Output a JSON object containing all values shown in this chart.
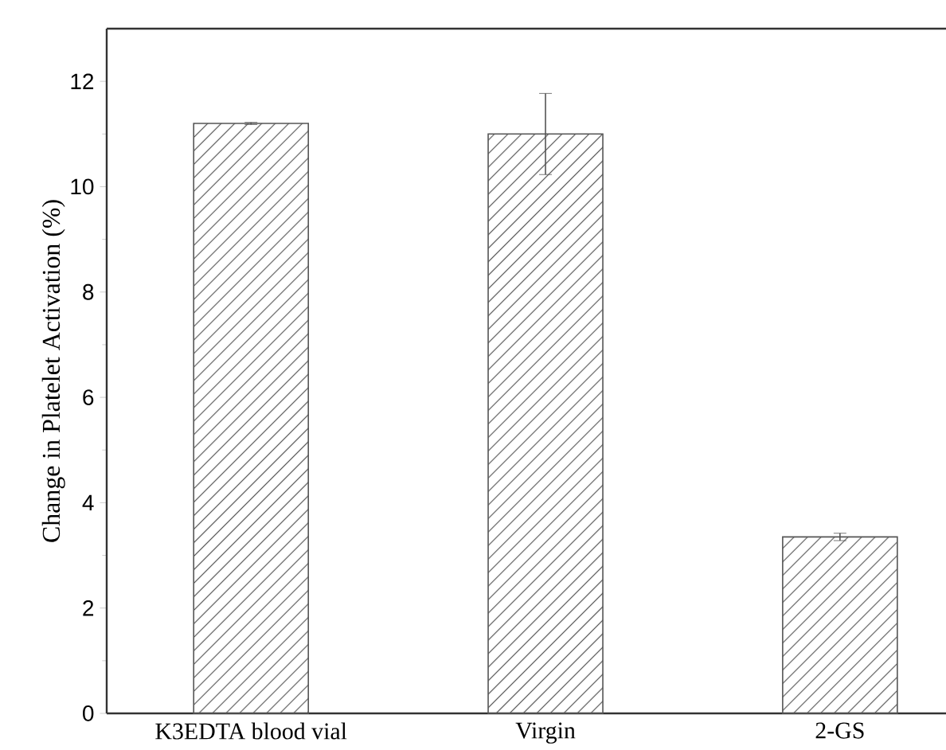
{
  "chart_data": {
    "type": "bar",
    "ylabel": "Change in Platelet Activation (%)",
    "categories": [
      "K3EDTA blood vial",
      "Virgin",
      "2-GS"
    ],
    "values": [
      11.2,
      11.0,
      3.35
    ],
    "errors": [
      0.02,
      0.77,
      0.07
    ],
    "color": "#555555",
    "ylim": [
      0,
      13
    ],
    "yticks": [
      0,
      2,
      4,
      6,
      8,
      10,
      12
    ]
  }
}
